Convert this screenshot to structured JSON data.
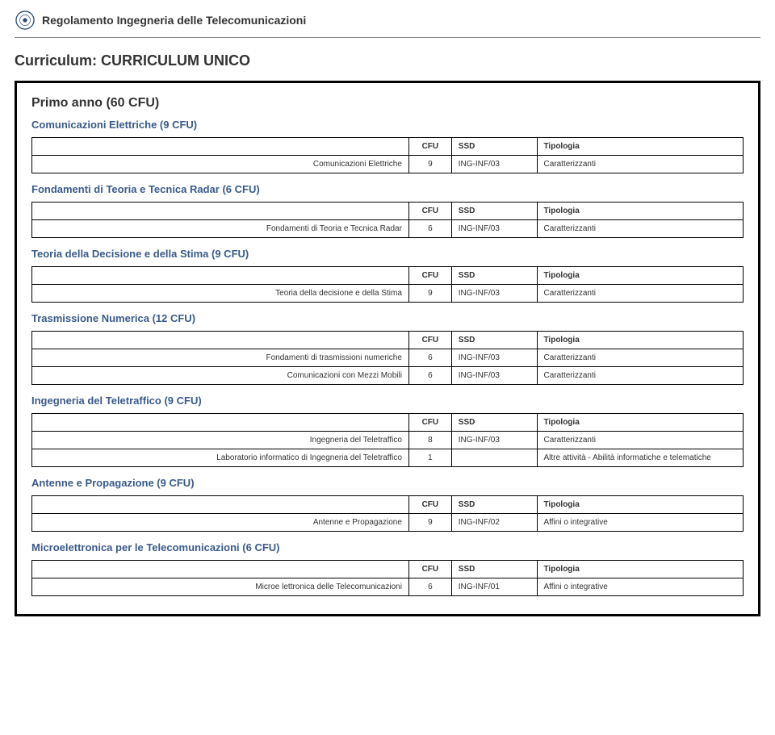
{
  "doc_title": "Regolamento Ingegneria delle Telecomunicazioni",
  "curriculum_title": "Curriculum: CURRICULUM UNICO",
  "year_title": "Primo anno (60 CFU)",
  "columns": {
    "cfu": "CFU",
    "ssd": "SSD",
    "tip": "Tipologia"
  },
  "sections": [
    {
      "title": "Comunicazioni Elettriche (9 CFU)",
      "rows": [
        {
          "name": "Comunicazioni Elettriche",
          "cfu": "9",
          "ssd": "ING-INF/03",
          "tip": "Caratterizzanti"
        }
      ]
    },
    {
      "title": "Fondamenti di Teoria e Tecnica Radar (6 CFU)",
      "rows": [
        {
          "name": "Fondamenti di Teoria e Tecnica Radar",
          "cfu": "6",
          "ssd": "ING-INF/03",
          "tip": "Caratterizzanti"
        }
      ]
    },
    {
      "title": "Teoria della Decisione e della Stima (9 CFU)",
      "rows": [
        {
          "name": "Teoria della decisione e della Stima",
          "cfu": "9",
          "ssd": "ING-INF/03",
          "tip": "Caratterizzanti"
        }
      ]
    },
    {
      "title": "Trasmissione Numerica (12 CFU)",
      "rows": [
        {
          "name": "Fondamenti di trasmissioni numeriche",
          "cfu": "6",
          "ssd": "ING-INF/03",
          "tip": "Caratterizzanti"
        },
        {
          "name": "Comunicazioni con Mezzi Mobili",
          "cfu": "6",
          "ssd": "ING-INF/03",
          "tip": "Caratterizzanti"
        }
      ]
    },
    {
      "title": "Ingegneria del Teletraffico (9 CFU)",
      "rows": [
        {
          "name": "Ingegneria del Teletraffico",
          "cfu": "8",
          "ssd": "ING-INF/03",
          "tip": "Caratterizzanti"
        },
        {
          "name": "Laboratorio informatico di Ingegneria del Teletraffico",
          "cfu": "1",
          "ssd": "",
          "tip": "Altre attività - Abilità informatiche e telematiche"
        }
      ]
    },
    {
      "title": "Antenne e Propagazione (9 CFU)",
      "rows": [
        {
          "name": "Antenne e Propagazione",
          "cfu": "9",
          "ssd": "ING-INF/02",
          "tip": "Affini o integrative"
        }
      ]
    },
    {
      "title": "Microelettronica per le Telecomunicazioni (6 CFU)",
      "rows": [
        {
          "name": "Microe lettronica delle Telecomunicazioni",
          "cfu": "6",
          "ssd": "ING-INF/01",
          "tip": "Affini o integrative"
        }
      ]
    }
  ]
}
